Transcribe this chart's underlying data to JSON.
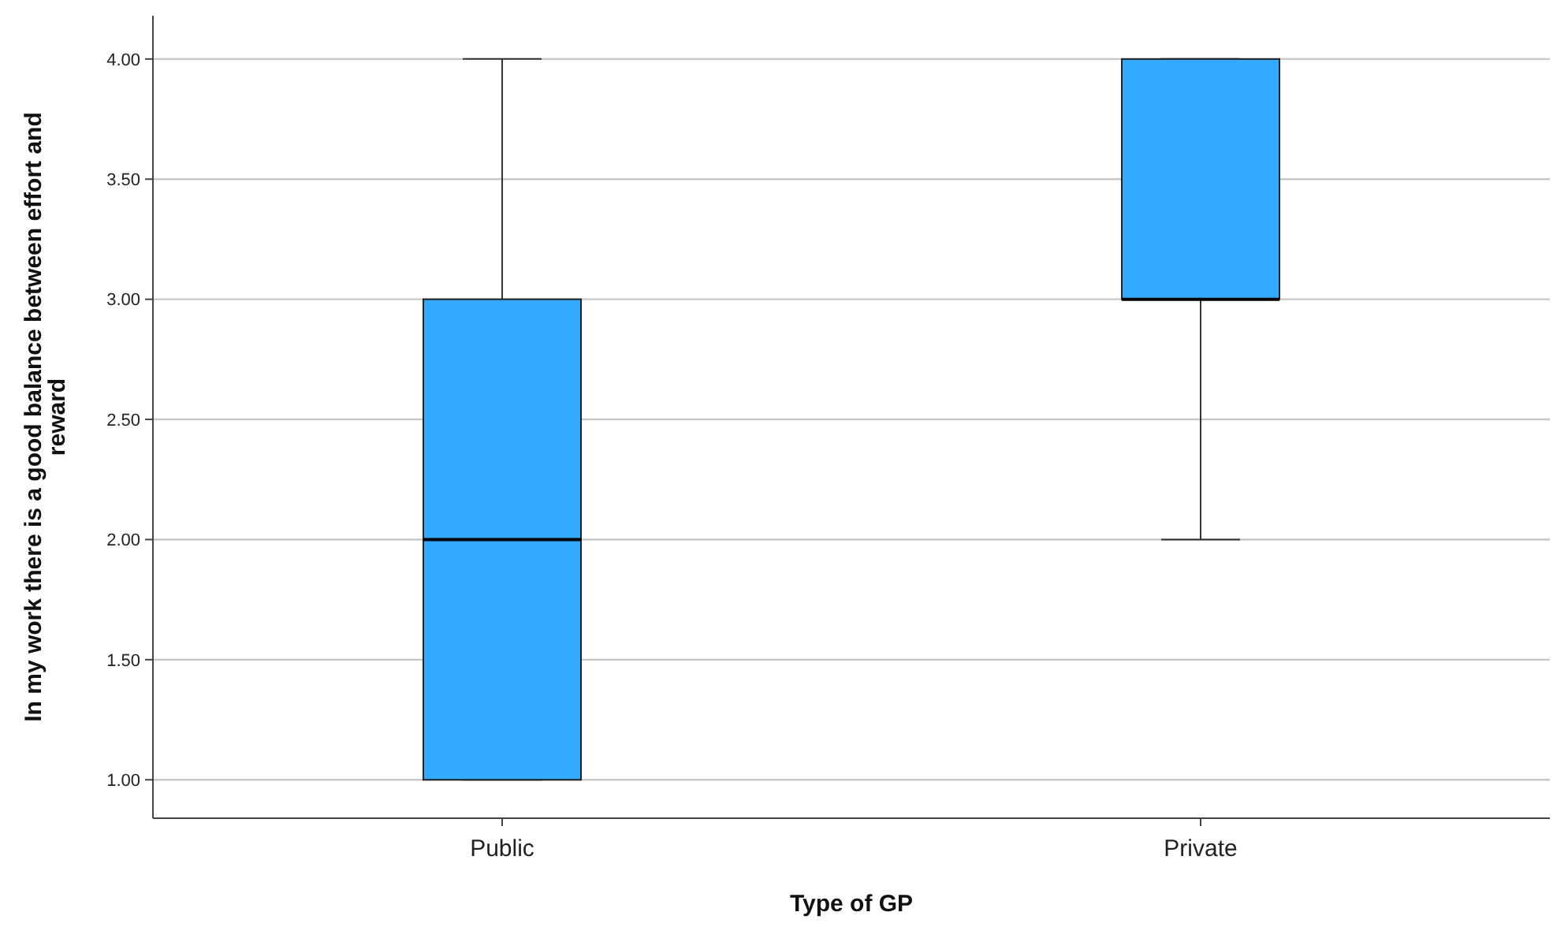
{
  "chart_data": {
    "type": "box",
    "xlabel": "Type of GP",
    "ylabel": "In my work there is a good balance between effort and reward",
    "categories": [
      "Public",
      "Private"
    ],
    "color": "#33aaff",
    "ylim": [
      0.84,
      4.18
    ],
    "yticks": [
      {
        "value": 1,
        "label": "1.00"
      },
      {
        "value": 1.5,
        "label": "1.50"
      },
      {
        "value": 2,
        "label": "2.00"
      },
      {
        "value": 2.5,
        "label": "2.50"
      },
      {
        "value": 3,
        "label": "3.00"
      },
      {
        "value": 3.5,
        "label": "3.50"
      },
      {
        "value": 4,
        "label": "4.00"
      }
    ],
    "grid": "y",
    "boxes": [
      {
        "low": 1,
        "q1": 1,
        "median": 2,
        "q3": 3,
        "high": 4
      },
      {
        "low": 2,
        "q1": 3,
        "median": 3,
        "q3": 4,
        "high": 4
      }
    ]
  }
}
